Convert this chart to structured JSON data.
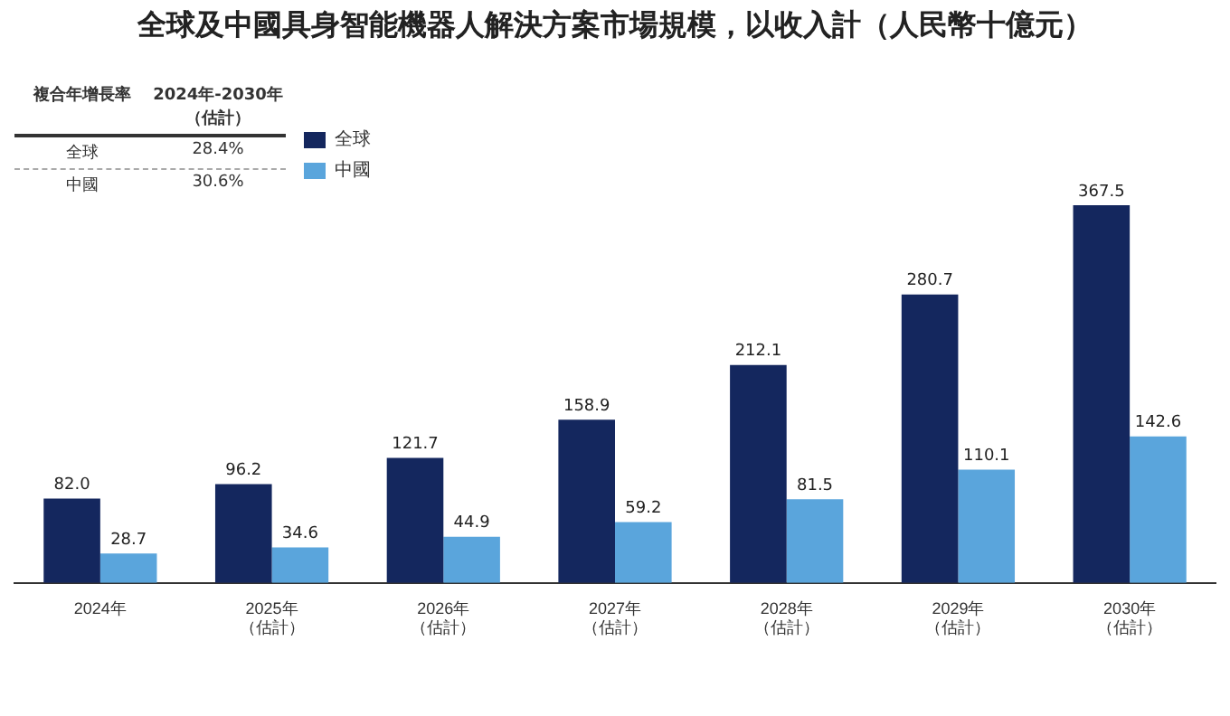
{
  "chart_data": {
    "type": "bar",
    "title": "全球及中國具身智能機器人解決方案市場規模，以收入計（人民幣十億元）",
    "categories": [
      "2024年",
      "2025年（估計）",
      "2026年（估計）",
      "2027年（估計）",
      "2028年（估計）",
      "2029年（估計）",
      "2030年（估計）"
    ],
    "series": [
      {
        "name": "全球",
        "color": "#14275e",
        "values": [
          82.0,
          96.2,
          121.7,
          158.9,
          212.1,
          280.7,
          367.5
        ],
        "value_labels": [
          "82.0",
          "96.2",
          "121.7",
          "158.9",
          "212.1",
          "280.7",
          "367.5"
        ]
      },
      {
        "name": "中國",
        "color": "#5aa5dc",
        "values": [
          28.7,
          34.6,
          44.9,
          59.2,
          81.5,
          110.1,
          142.6
        ],
        "value_labels": [
          "28.7",
          "34.6",
          "44.9",
          "59.2",
          "81.5",
          "110.1",
          "142.6"
        ]
      }
    ],
    "legend": "top left",
    "grid": false,
    "annotations": [
      "複合年增長率",
      "2024年-2030年（估計）",
      "全球",
      "28.4%",
      "中國",
      "30.6%"
    ]
  }
}
